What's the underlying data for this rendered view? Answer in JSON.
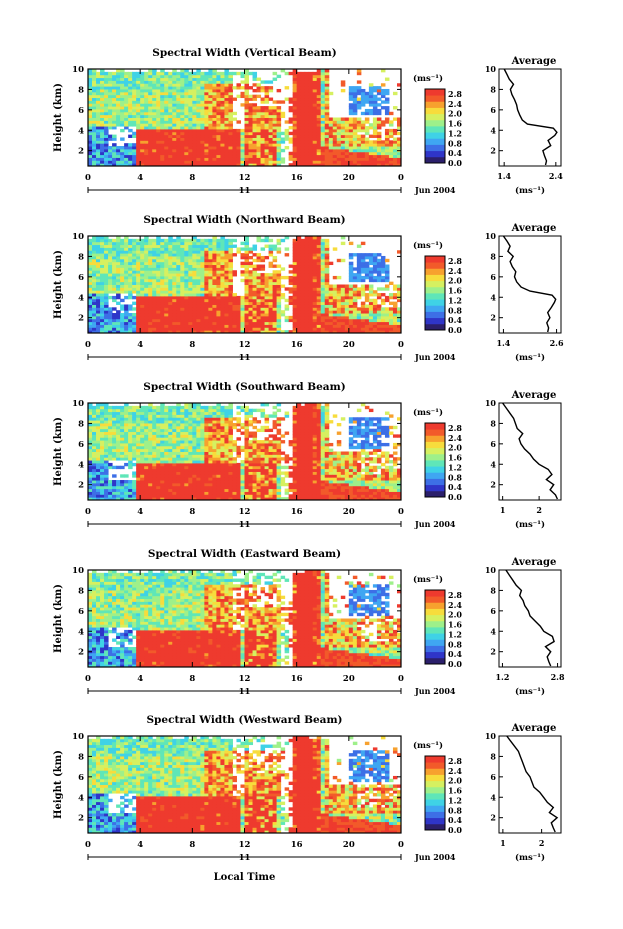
{
  "figure": {
    "colorbar_unit": "(ms⁻¹)",
    "date_label": "Jun 2004",
    "day_label": "11",
    "xlabel": "Local Time",
    "ylabel": "Height (km)",
    "average_title": "Average",
    "average_xlabel": "(ms⁻¹)"
  },
  "chart_data": [
    {
      "type": "heatmap",
      "title": "Spectral Width (Vertical Beam)",
      "xlabel": "",
      "ylabel": "Height (km)",
      "x_ticks": [
        "0",
        "4",
        "8",
        "12",
        "16",
        "20",
        "0"
      ],
      "y_ticks": [
        "2",
        "4",
        "6",
        "8",
        "10"
      ],
      "xlim": [
        0,
        24
      ],
      "ylim": [
        0.5,
        10
      ],
      "colorbar": {
        "ticks": [
          "0.0",
          "0.4",
          "0.8",
          "1.2",
          "1.6",
          "2.0",
          "2.4",
          "2.8"
        ],
        "range": [
          0,
          3.0
        ]
      },
      "average_profile": {
        "xticks": [
          "1.4",
          "2.4"
        ],
        "xlim": [
          1.3,
          2.5
        ],
        "yticks": [
          "2",
          "4",
          "6",
          "8",
          "10"
        ],
        "height": [
          0.6,
          1.0,
          1.5,
          2.0,
          2.5,
          3.0,
          3.5,
          3.8,
          4.2,
          4.6,
          5.0,
          5.5,
          6.0,
          6.5,
          7.0,
          7.5,
          8.0,
          8.5,
          9.0,
          9.5,
          10.0
        ],
        "value": [
          2.2,
          2.22,
          2.18,
          2.15,
          2.3,
          2.25,
          2.38,
          2.42,
          2.35,
          1.85,
          1.75,
          1.7,
          1.66,
          1.64,
          1.6,
          1.55,
          1.52,
          1.58,
          1.5,
          1.45,
          1.4
        ]
      }
    },
    {
      "type": "heatmap",
      "title": "Spectral Width (Northward Beam)",
      "xlabel": "",
      "ylabel": "Height (km)",
      "x_ticks": [
        "0",
        "4",
        "8",
        "12",
        "16",
        "20",
        "0"
      ],
      "y_ticks": [
        "2",
        "4",
        "6",
        "8",
        "10"
      ],
      "xlim": [
        0,
        24
      ],
      "ylim": [
        0.5,
        10
      ],
      "colorbar": {
        "ticks": [
          "0.0",
          "0.4",
          "0.8",
          "1.2",
          "1.6",
          "2.0",
          "2.4",
          "2.8"
        ],
        "range": [
          0,
          3.0
        ]
      },
      "average_profile": {
        "xticks": [
          "1.4",
          "2.6"
        ],
        "xlim": [
          1.3,
          2.7
        ],
        "yticks": [
          "2",
          "4",
          "6",
          "8",
          "10"
        ],
        "height": [
          0.6,
          1.0,
          1.5,
          2.0,
          2.5,
          3.0,
          3.5,
          3.8,
          4.2,
          4.6,
          5.0,
          5.5,
          6.0,
          6.5,
          7.0,
          7.5,
          8.0,
          8.5,
          9.0,
          9.5,
          10.0
        ],
        "value": [
          2.4,
          2.42,
          2.38,
          2.45,
          2.4,
          2.48,
          2.55,
          2.58,
          2.5,
          2.0,
          1.8,
          1.7,
          1.65,
          1.68,
          1.6,
          1.55,
          1.62,
          1.5,
          1.55,
          1.48,
          1.4
        ]
      }
    },
    {
      "type": "heatmap",
      "title": "Spectral Width (Southward Beam)",
      "xlabel": "",
      "ylabel": "Height (km)",
      "x_ticks": [
        "0",
        "4",
        "8",
        "12",
        "16",
        "20",
        "0"
      ],
      "y_ticks": [
        "2",
        "4",
        "6",
        "8",
        "10"
      ],
      "xlim": [
        0,
        24
      ],
      "ylim": [
        0.5,
        10
      ],
      "colorbar": {
        "ticks": [
          "0.0",
          "0.4",
          "0.8",
          "1.2",
          "1.6",
          "2.0",
          "2.4",
          "2.8"
        ],
        "range": [
          0,
          3.0
        ]
      },
      "average_profile": {
        "xticks": [
          "1",
          "2"
        ],
        "xlim": [
          0.9,
          2.6
        ],
        "yticks": [
          "2",
          "4",
          "6",
          "8",
          "10"
        ],
        "height": [
          0.6,
          1.0,
          1.5,
          2.0,
          2.5,
          3.0,
          3.5,
          4.0,
          4.5,
          5.0,
          5.5,
          6.0,
          6.5,
          7.0,
          7.5,
          8.0,
          8.5,
          9.0,
          9.5,
          10.0
        ],
        "value": [
          2.5,
          2.45,
          2.3,
          2.4,
          2.2,
          2.35,
          2.25,
          2.0,
          1.85,
          1.75,
          1.6,
          1.5,
          1.45,
          1.55,
          1.4,
          1.35,
          1.3,
          1.2,
          1.1,
          1.0
        ]
      }
    },
    {
      "type": "heatmap",
      "title": "Spectral Width (Eastward Beam)",
      "xlabel": "",
      "ylabel": "Height (km)",
      "x_ticks": [
        "0",
        "4",
        "8",
        "12",
        "16",
        "20",
        "0"
      ],
      "y_ticks": [
        "2",
        "4",
        "6",
        "8",
        "10"
      ],
      "xlim": [
        0,
        24
      ],
      "ylim": [
        0.5,
        10
      ],
      "colorbar": {
        "ticks": [
          "0.0",
          "0.4",
          "0.8",
          "1.2",
          "1.6",
          "2.0",
          "2.4",
          "2.8"
        ],
        "range": [
          0,
          3.0
        ]
      },
      "average_profile": {
        "xticks": [
          "1.2",
          "2.8"
        ],
        "xlim": [
          1.1,
          2.9
        ],
        "yticks": [
          "2",
          "4",
          "6",
          "8",
          "10"
        ],
        "height": [
          0.6,
          1.0,
          1.5,
          2.0,
          2.5,
          3.0,
          3.5,
          4.0,
          4.5,
          5.0,
          5.5,
          6.0,
          6.5,
          7.0,
          7.5,
          8.0,
          8.5,
          9.0,
          9.5,
          10.0
        ],
        "value": [
          2.6,
          2.55,
          2.5,
          2.6,
          2.45,
          2.7,
          2.65,
          2.4,
          2.3,
          2.15,
          2.0,
          1.95,
          1.85,
          1.8,
          1.7,
          1.75,
          1.6,
          1.5,
          1.4,
          1.3
        ]
      }
    },
    {
      "type": "heatmap",
      "title": "Spectral Width (Westward Beam)",
      "xlabel": "Local Time",
      "ylabel": "Height (km)",
      "x_ticks": [
        "0",
        "4",
        "8",
        "12",
        "16",
        "20",
        "0"
      ],
      "y_ticks": [
        "2",
        "4",
        "6",
        "8",
        "10"
      ],
      "xlim": [
        0,
        24
      ],
      "ylim": [
        0.5,
        10
      ],
      "colorbar": {
        "ticks": [
          "0.0",
          "0.4",
          "0.8",
          "1.2",
          "1.6",
          "2.0",
          "2.4",
          "2.8"
        ],
        "range": [
          0,
          3.0
        ]
      },
      "average_profile": {
        "xticks": [
          "1",
          "2"
        ],
        "xlim": [
          0.9,
          2.5
        ],
        "yticks": [
          "2",
          "4",
          "6",
          "8",
          "10"
        ],
        "height": [
          0.6,
          1.0,
          1.5,
          2.0,
          2.5,
          3.0,
          3.5,
          4.0,
          4.5,
          5.0,
          5.5,
          6.0,
          6.5,
          7.0,
          7.5,
          8.0,
          8.5,
          9.0,
          9.5,
          10.0
        ],
        "value": [
          2.35,
          2.3,
          2.25,
          2.4,
          2.2,
          2.3,
          2.15,
          2.05,
          1.95,
          1.8,
          1.75,
          1.7,
          1.6,
          1.55,
          1.5,
          1.45,
          1.4,
          1.3,
          1.2,
          1.1
        ]
      }
    }
  ]
}
